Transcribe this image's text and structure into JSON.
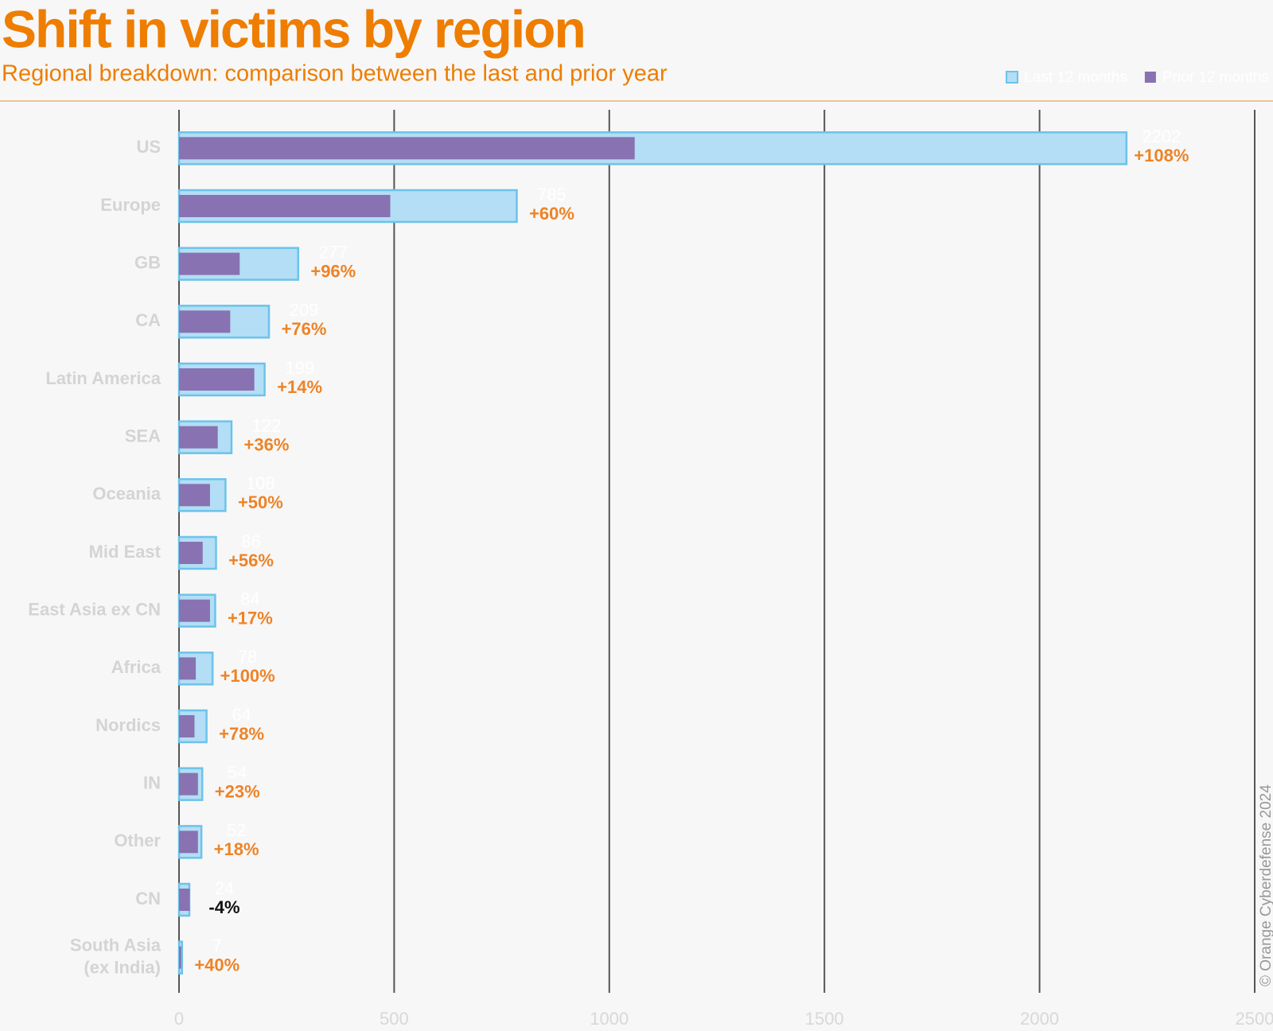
{
  "chart_data": {
    "type": "bar",
    "orientation": "horizontal",
    "title": "Shift in victims by region",
    "subtitle": "Regional breakdown: comparison between the last and prior year",
    "categories": [
      "US",
      "Europe",
      "GB",
      "CA",
      "Latin America",
      "SEA",
      "Oceania",
      "Mid East",
      "East Asia  ex CN",
      "Africa",
      "Nordics",
      "IN",
      "Other",
      "CN",
      "South Asia\n(ex India)"
    ],
    "series": [
      {
        "name": "Last 12 months",
        "color": "#b3def5",
        "border_color": "#6cc3ea",
        "values": [
          2202,
          785,
          277,
          209,
          199,
          122,
          108,
          86,
          84,
          78,
          64,
          54,
          52,
          24,
          7
        ]
      },
      {
        "name": "Prior 12 months",
        "color": "#8872b1",
        "values": [
          1059,
          491,
          141,
          119,
          175,
          90,
          72,
          55,
          72,
          39,
          36,
          44,
          44,
          25,
          5
        ]
      }
    ],
    "change_labels": [
      "+108%",
      "+60%",
      "+96%",
      "+76%",
      "+14%",
      "+36%",
      "+50%",
      "+56%",
      "+17%",
      "+100%",
      "+78%",
      "+23%",
      "+18%",
      "-4%",
      "+40%"
    ],
    "change_color": "#ee8326",
    "negative_change_color": "#111111",
    "xlim": [
      0,
      2500
    ],
    "xticks": [
      0,
      500,
      1000,
      1500,
      2000,
      2500
    ],
    "grid": true,
    "legend_position": "top-right",
    "credit": "© Orange Cyberdefense 2024"
  }
}
